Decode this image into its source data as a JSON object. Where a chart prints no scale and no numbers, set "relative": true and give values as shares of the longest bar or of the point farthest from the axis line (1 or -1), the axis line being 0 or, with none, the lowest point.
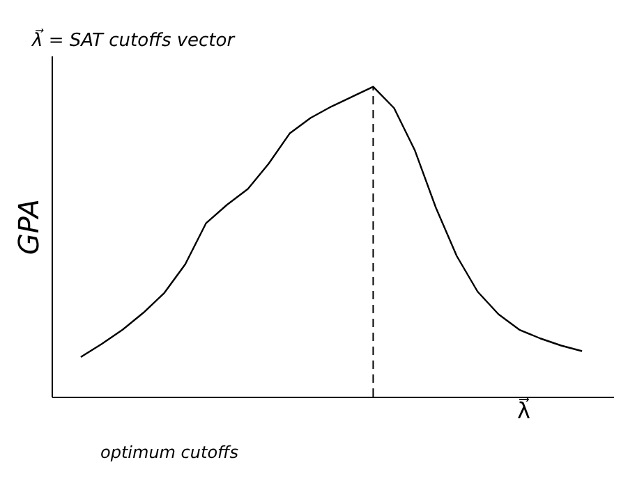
{
  "chart_data": {
    "type": "line",
    "relative": true,
    "title": "λ⃗ = SAT cutoffs vector",
    "xlabel": "λ⃗",
    "ylabel": "GPA",
    "categories": [
      null,
      null,
      null,
      null,
      null,
      null,
      null,
      null,
      null,
      null,
      null,
      null,
      null,
      null,
      null,
      null,
      null,
      null,
      null,
      null,
      null,
      null,
      null,
      null,
      null
    ],
    "series": [
      {
        "color": "#000000",
        "values": [
          0.128,
          0.17,
          0.216,
          0.271,
          0.335,
          0.427,
          0.56,
          0.619,
          0.67,
          0.752,
          0.849,
          0.899,
          0.936,
          0.968,
          1,
          0.931,
          0.794,
          0.61,
          0.454,
          0.339,
          0.266,
          0.216,
          0.188,
          0.165,
          0.147
        ]
      }
    ],
    "annotations": [
      "optimum cutoffs"
    ],
    "marker": "none",
    "line_style": "solid"
  }
}
